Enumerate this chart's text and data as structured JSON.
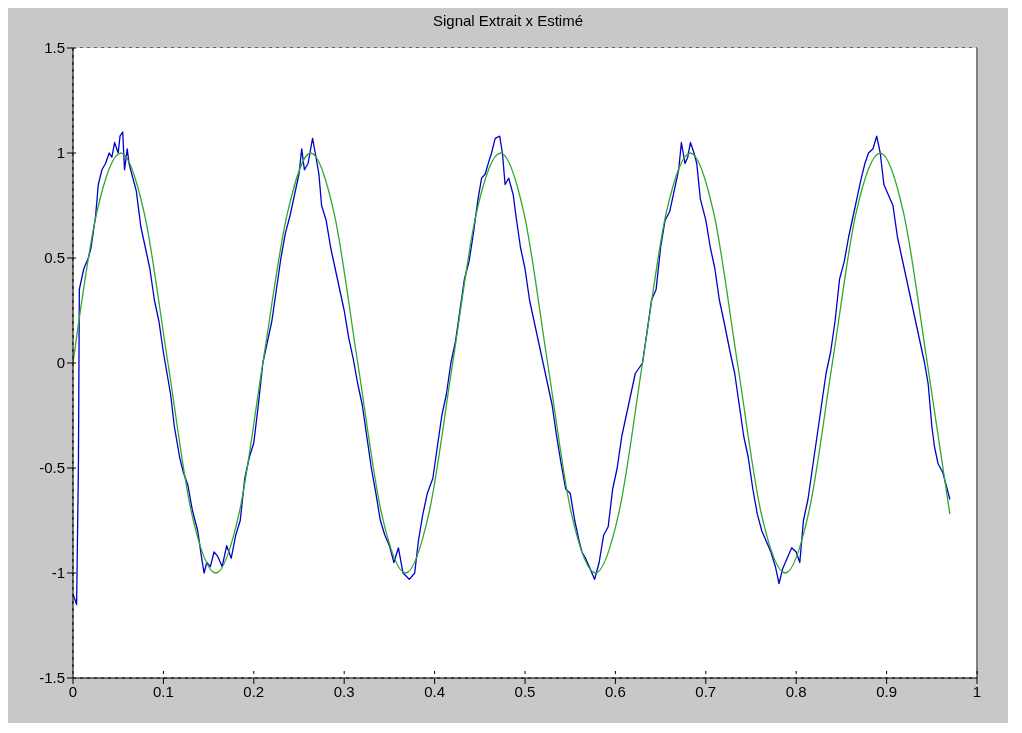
{
  "chart_data": {
    "type": "line",
    "title": "Signal Extrait x Estimé",
    "xlim": [
      0,
      1
    ],
    "xticks": [
      0,
      0.1,
      0.2,
      0.3,
      0.4,
      0.5,
      0.6,
      0.7,
      0.8,
      0.9,
      1
    ],
    "ylim": [
      -1.5,
      1.5
    ],
    "yticks": [
      -1.5,
      -1,
      -0.5,
      0,
      0.5,
      1,
      1.5
    ],
    "grid": true,
    "line_style": "solid",
    "marker": "none",
    "series": [
      {
        "color": "#0000cc",
        "x": [
          0.0,
          0.004,
          0.006,
          0.007,
          0.012,
          0.017,
          0.02,
          0.025,
          0.028,
          0.032,
          0.036,
          0.04,
          0.043,
          0.046,
          0.05,
          0.052,
          0.055,
          0.057,
          0.06,
          0.062,
          0.065,
          0.07,
          0.075,
          0.08,
          0.085,
          0.09,
          0.095,
          0.1,
          0.104,
          0.108,
          0.112,
          0.118,
          0.122,
          0.127,
          0.132,
          0.138,
          0.142,
          0.145,
          0.148,
          0.152,
          0.156,
          0.16,
          0.165,
          0.17,
          0.175,
          0.18,
          0.185,
          0.19,
          0.195,
          0.2,
          0.205,
          0.21,
          0.215,
          0.22,
          0.225,
          0.23,
          0.235,
          0.24,
          0.245,
          0.25,
          0.253,
          0.256,
          0.26,
          0.265,
          0.268,
          0.272,
          0.275,
          0.28,
          0.285,
          0.29,
          0.295,
          0.3,
          0.305,
          0.31,
          0.315,
          0.32,
          0.325,
          0.33,
          0.335,
          0.34,
          0.345,
          0.35,
          0.355,
          0.36,
          0.365,
          0.372,
          0.378,
          0.382,
          0.387,
          0.392,
          0.398,
          0.403,
          0.408,
          0.413,
          0.418,
          0.423,
          0.428,
          0.433,
          0.438,
          0.443,
          0.448,
          0.452,
          0.456,
          0.46,
          0.463,
          0.467,
          0.472,
          0.475,
          0.478,
          0.482,
          0.487,
          0.49,
          0.495,
          0.5,
          0.505,
          0.51,
          0.515,
          0.52,
          0.525,
          0.53,
          0.535,
          0.54,
          0.545,
          0.55,
          0.555,
          0.56,
          0.563,
          0.567,
          0.572,
          0.577,
          0.582,
          0.587,
          0.592,
          0.597,
          0.602,
          0.607,
          0.612,
          0.617,
          0.622,
          0.63,
          0.635,
          0.64,
          0.645,
          0.65,
          0.655,
          0.66,
          0.665,
          0.67,
          0.673,
          0.677,
          0.68,
          0.683,
          0.687,
          0.69,
          0.694,
          0.7,
          0.705,
          0.71,
          0.715,
          0.72,
          0.727,
          0.732,
          0.737,
          0.742,
          0.747,
          0.752,
          0.757,
          0.762,
          0.767,
          0.772,
          0.777,
          0.781,
          0.785,
          0.79,
          0.795,
          0.8,
          0.804,
          0.808,
          0.813,
          0.818,
          0.823,
          0.828,
          0.833,
          0.838,
          0.843,
          0.848,
          0.853,
          0.858,
          0.863,
          0.867,
          0.872,
          0.876,
          0.88,
          0.885,
          0.889,
          0.893,
          0.897,
          0.902,
          0.907,
          0.912,
          0.917,
          0.922,
          0.927,
          0.932,
          0.937,
          0.942,
          0.946,
          0.95,
          0.953,
          0.957,
          0.962,
          0.967,
          0.97
        ],
        "values": [
          -1.1,
          -1.15,
          -0.48,
          0.35,
          0.45,
          0.5,
          0.55,
          0.7,
          0.85,
          0.92,
          0.95,
          1.0,
          0.98,
          1.05,
          1.0,
          1.08,
          1.1,
          0.92,
          1.02,
          0.95,
          0.9,
          0.82,
          0.65,
          0.55,
          0.45,
          0.3,
          0.2,
          0.05,
          -0.05,
          -0.15,
          -0.3,
          -0.45,
          -0.52,
          -0.58,
          -0.7,
          -0.8,
          -0.92,
          -1.0,
          -0.95,
          -0.97,
          -0.9,
          -0.92,
          -0.97,
          -0.87,
          -0.93,
          -0.82,
          -0.75,
          -0.55,
          -0.45,
          -0.38,
          -0.2,
          0.0,
          0.1,
          0.2,
          0.35,
          0.5,
          0.62,
          0.7,
          0.8,
          0.9,
          1.02,
          0.92,
          0.95,
          1.07,
          1.0,
          0.9,
          0.75,
          0.68,
          0.55,
          0.45,
          0.35,
          0.25,
          0.12,
          0.02,
          -0.1,
          -0.2,
          -0.35,
          -0.5,
          -0.62,
          -0.75,
          -0.82,
          -0.87,
          -0.95,
          -0.88,
          -1.0,
          -1.03,
          -1.0,
          -0.85,
          -0.72,
          -0.62,
          -0.55,
          -0.4,
          -0.25,
          -0.15,
          0.0,
          0.1,
          0.25,
          0.4,
          0.48,
          0.62,
          0.78,
          0.88,
          0.9,
          0.96,
          1.0,
          1.07,
          1.08,
          1.0,
          0.85,
          0.88,
          0.8,
          0.7,
          0.55,
          0.45,
          0.3,
          0.2,
          0.1,
          0.0,
          -0.1,
          -0.2,
          -0.35,
          -0.48,
          -0.6,
          -0.62,
          -0.75,
          -0.85,
          -0.9,
          -0.93,
          -0.98,
          -1.03,
          -0.95,
          -0.82,
          -0.78,
          -0.6,
          -0.5,
          -0.35,
          -0.25,
          -0.15,
          -0.05,
          0.0,
          0.15,
          0.3,
          0.35,
          0.55,
          0.68,
          0.72,
          0.82,
          0.92,
          1.05,
          0.95,
          0.98,
          1.05,
          1.0,
          0.95,
          0.78,
          0.68,
          0.55,
          0.45,
          0.3,
          0.2,
          0.05,
          -0.05,
          -0.2,
          -0.35,
          -0.45,
          -0.6,
          -0.72,
          -0.8,
          -0.85,
          -0.9,
          -0.97,
          -1.05,
          -0.98,
          -0.93,
          -0.88,
          -0.9,
          -0.95,
          -0.75,
          -0.65,
          -0.5,
          -0.35,
          -0.2,
          -0.05,
          0.05,
          0.2,
          0.4,
          0.48,
          0.6,
          0.7,
          0.78,
          0.88,
          0.95,
          1.0,
          1.02,
          1.08,
          1.0,
          0.85,
          0.8,
          0.75,
          0.6,
          0.5,
          0.4,
          0.3,
          0.2,
          0.1,
          0.0,
          -0.1,
          -0.3,
          -0.4,
          -0.48,
          -0.52,
          -0.6,
          -0.65
        ]
      },
      {
        "color": "#2ea82e",
        "x": [
          0,
          0.026,
          0.053,
          0.079,
          0.105,
          0.131,
          0.158,
          0.184,
          0.21,
          0.237,
          0.263,
          0.289,
          0.315,
          0.341,
          0.368,
          0.394,
          0.42,
          0.446,
          0.473,
          0.499,
          0.525,
          0.551,
          0.578,
          0.604,
          0.63,
          0.656,
          0.683,
          0.709,
          0.735,
          0.761,
          0.788,
          0.814,
          0.84,
          0.866,
          0.893,
          0.919,
          0.945,
          0.97
        ],
        "values": [
          0,
          0.71,
          1,
          0.71,
          0,
          -0.71,
          -1,
          -0.71,
          0,
          0.71,
          1,
          0.71,
          0,
          -0.71,
          -1,
          -0.71,
          0,
          0.71,
          1,
          0.71,
          0,
          -0.71,
          -1,
          -0.71,
          0,
          0.71,
          1,
          0.71,
          0,
          -0.71,
          -1,
          -0.71,
          0,
          0.71,
          1,
          0.71,
          0,
          -0.72
        ]
      }
    ]
  }
}
